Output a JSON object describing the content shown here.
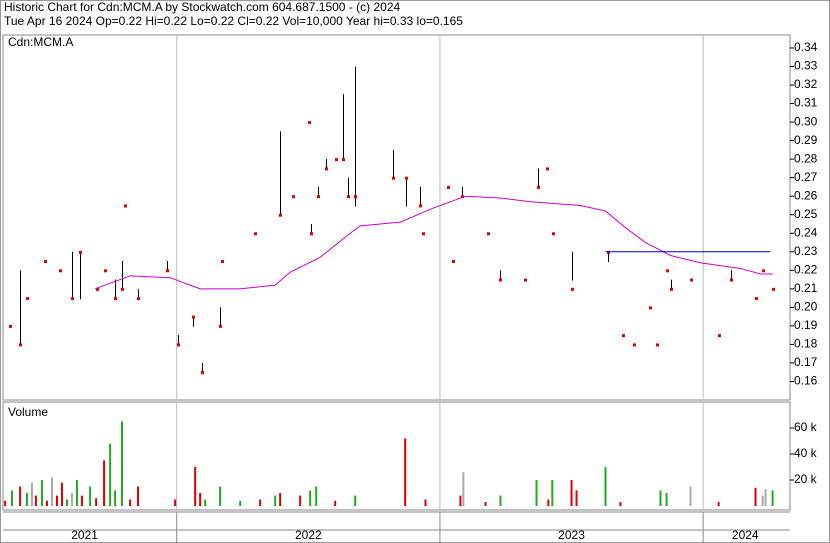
{
  "header": {
    "title": "Historic Chart for Cdn:MCM.A by Stockwatch.com 604.687.1500 - (c) 2024",
    "quote": "Tue Apr 16 2024  Op=0.22  Hi=0.22  Lo=0.22  Cl=0.22  Vol=10,000  Year hi=0.33  lo=0.165"
  },
  "chart_data": [
    {
      "type": "ohlc",
      "label": "Cdn:MCM.A",
      "color": "#000000",
      "close_color": "#dd0000",
      "xlim": [
        2021.34,
        2024.33
      ],
      "xgrid": [
        2022,
        2023,
        2024
      ],
      "ylim": [
        0.15,
        0.347
      ],
      "yticks": [
        0.16,
        0.17,
        0.18,
        0.19,
        {
          "value": 0.2,
          "label": "0.20"
        },
        0.21,
        0.22,
        0.23,
        0.24,
        0.25,
        0.26,
        0.27,
        0.28,
        0.29,
        {
          "value": 0.3,
          "label": "0.30"
        },
        0.31,
        0.32,
        0.33,
        0.34
      ],
      "x": [
        2021.367,
        2021.405,
        2021.431,
        2021.5,
        2021.557,
        2021.602,
        2021.633,
        2021.697,
        2021.728,
        2021.766,
        2021.792,
        2021.804,
        2021.853,
        2021.964,
        2022.005,
        2022.062,
        2022.097,
        2022.165,
        2022.173,
        2022.298,
        2022.393,
        2022.443,
        2022.503,
        2022.511,
        2022.538,
        2022.568,
        2022.606,
        2022.633,
        2022.652,
        2022.678,
        2022.823,
        2022.872,
        2022.926,
        2022.937,
        2023.032,
        2023.051,
        2023.085,
        2023.184,
        2023.23,
        2023.325,
        2023.374,
        2023.405,
        2023.431,
        2023.503,
        2023.637,
        2023.694,
        2023.739,
        2023.8,
        2023.823,
        2023.861,
        2023.876,
        2023.952,
        2024.059,
        2024.104,
        2024.199,
        2024.226,
        2024.264
      ],
      "high": [
        0.19,
        0.22,
        0.205,
        0.225,
        0.22,
        0.23,
        0.23,
        0.21,
        0.22,
        0.215,
        0.225,
        0.255,
        0.21,
        0.225,
        0.185,
        0.195,
        0.17,
        0.2,
        0.225,
        0.24,
        0.295,
        0.26,
        0.3,
        0.245,
        0.265,
        0.28,
        0.28,
        0.315,
        0.27,
        0.33,
        0.285,
        0.27,
        0.265,
        0.24,
        0.265,
        0.225,
        0.265,
        0.24,
        0.22,
        0.215,
        0.275,
        0.275,
        0.24,
        0.23,
        0.23,
        0.185,
        0.18,
        0.2,
        0.18,
        0.22,
        0.215,
        0.215,
        0.185,
        0.22,
        0.205,
        0.22,
        0.21
      ],
      "low": [
        0.19,
        0.18,
        0.205,
        0.225,
        0.22,
        0.205,
        0.205,
        0.21,
        0.22,
        0.205,
        0.21,
        0.255,
        0.205,
        0.22,
        0.18,
        0.19,
        0.165,
        0.19,
        0.225,
        0.24,
        0.25,
        0.26,
        0.3,
        0.24,
        0.26,
        0.275,
        0.28,
        0.28,
        0.26,
        0.255,
        0.27,
        0.255,
        0.255,
        0.24,
        0.265,
        0.225,
        0.26,
        0.24,
        0.215,
        0.215,
        0.265,
        0.275,
        0.24,
        0.215,
        0.225,
        0.185,
        0.18,
        0.2,
        0.18,
        0.22,
        0.21,
        0.215,
        0.185,
        0.215,
        0.205,
        0.22,
        0.21
      ],
      "close": [
        0.19,
        0.18,
        0.205,
        0.225,
        0.22,
        0.205,
        0.23,
        0.21,
        0.22,
        0.205,
        0.21,
        0.255,
        0.205,
        0.22,
        0.18,
        0.195,
        0.165,
        0.19,
        0.225,
        0.24,
        0.25,
        0.26,
        0.3,
        0.24,
        0.26,
        0.275,
        0.28,
        0.28,
        0.26,
        0.26,
        0.27,
        0.27,
        0.255,
        0.24,
        0.265,
        0.225,
        0.26,
        0.24,
        0.215,
        0.215,
        0.265,
        0.275,
        0.24,
        0.21,
        0.23,
        0.185,
        0.18,
        0.2,
        0.18,
        0.22,
        0.21,
        0.215,
        0.185,
        0.215,
        0.205,
        0.22,
        0.21
      ],
      "series": [
        {
          "color": "#cc00cc",
          "x": [
            2021.69,
            2021.823,
            2021.975,
            2022.089,
            2022.241,
            2022.374,
            2022.431,
            2022.545,
            2022.659,
            2022.697,
            2022.85,
            2022.964,
            2023.097,
            2023.23,
            2023.344,
            2023.534,
            2023.629,
            2023.705,
            2023.781,
            2023.876,
            2023.991,
            2024.142,
            2024.218,
            2024.264
          ],
          "values": [
            0.21,
            0.217,
            0.216,
            0.21,
            0.21,
            0.212,
            0.219,
            0.227,
            0.24,
            0.244,
            0.246,
            0.253,
            0.26,
            0.259,
            0.257,
            0.255,
            0.252,
            0.243,
            0.235,
            0.228,
            0.224,
            0.221,
            0.218,
            0.218
          ]
        },
        {
          "color": "#0000cc",
          "x": [
            2023.629,
            2024.256
          ],
          "values": [
            0.23,
            0.23
          ]
        }
      ]
    },
    {
      "type": "bar",
      "label": "Volume",
      "xlim": [
        2021.34,
        2024.33
      ],
      "xgrid": [
        2022,
        2023,
        2024
      ],
      "xticks": [
        {
          "value": 2021.65,
          "label": "2021"
        },
        {
          "value": 2022.5,
          "label": "2022"
        },
        {
          "value": 2023.5,
          "label": "2023"
        },
        {
          "value": 2024.16,
          "label": "2024"
        }
      ],
      "ylim": [
        0,
        80000
      ],
      "yticks": [
        {
          "value": 20000,
          "label": "20 k"
        },
        {
          "value": 40000,
          "label": "40 k"
        },
        {
          "value": 60000,
          "label": "60 k"
        }
      ],
      "x": [
        2021.348,
        2021.374,
        2021.405,
        2021.431,
        2021.45,
        2021.465,
        2021.488,
        2021.507,
        2021.526,
        2021.545,
        2021.564,
        2021.583,
        2021.602,
        2021.621,
        2021.64,
        2021.671,
        2021.694,
        2021.724,
        2021.747,
        2021.766,
        2021.792,
        2021.823,
        2021.853,
        2021.994,
        2022.07,
        2022.089,
        2022.108,
        2022.165,
        2022.241,
        2022.317,
        2022.374,
        2022.393,
        2022.469,
        2022.507,
        2022.53,
        2022.602,
        2022.678,
        2022.868,
        2022.945,
        2023.078,
        2023.089,
        2023.173,
        2023.23,
        2023.367,
        2023.412,
        2023.427,
        2023.5,
        2023.519,
        2023.629,
        2023.686,
        2023.838,
        2023.861,
        2023.952,
        2024.059,
        2024.199,
        2024.226,
        2024.237,
        2024.264
      ],
      "values": [
        4000,
        12000,
        15000,
        10000,
        18000,
        8000,
        20000,
        4000,
        22000,
        8000,
        18000,
        5000,
        10000,
        20000,
        8000,
        15000,
        6000,
        35000,
        48000,
        12000,
        65000,
        5000,
        15000,
        5000,
        30000,
        10000,
        5000,
        15000,
        4000,
        5000,
        8000,
        10000,
        8000,
        12000,
        15000,
        4000,
        8000,
        52000,
        5000,
        8000,
        26000,
        3000,
        8000,
        20000,
        5000,
        20000,
        20000,
        12000,
        30000,
        3000,
        12000,
        10000,
        15000,
        3000,
        14000,
        8000,
        13000,
        12000
      ],
      "colors": [
        "#dd0000",
        "#22aa22",
        "#dd0000",
        "#22aa22",
        "#aaaaaa",
        "#dd0000",
        "#22aa22",
        "#dd0000",
        "#aaaaaa",
        "#dd0000",
        "#dd0000",
        "#22aa22",
        "#aaaaaa",
        "#22aa22",
        "#dd0000",
        "#22aa22",
        "#dd0000",
        "#dd0000",
        "#22aa22",
        "#22aa22",
        "#22aa22",
        "#dd0000",
        "#dd0000",
        "#dd0000",
        "#dd0000",
        "#dd0000",
        "#22aa22",
        "#22aa22",
        "#22aa22",
        "#dd0000",
        "#22aa22",
        "#dd0000",
        "#dd0000",
        "#22aa22",
        "#22aa22",
        "#dd0000",
        "#22aa22",
        "#dd0000",
        "#dd0000",
        "#dd0000",
        "#aaaaaa",
        "#dd0000",
        "#22aa22",
        "#22aa22",
        "#dd0000",
        "#22aa22",
        "#dd0000",
        "#dd0000",
        "#22aa22",
        "#dd0000",
        "#22aa22",
        "#22aa22",
        "#aaaaaa",
        "#dd0000",
        "#dd0000",
        "#aaaaaa",
        "#aaaaaa",
        "#22aa22"
      ]
    }
  ]
}
